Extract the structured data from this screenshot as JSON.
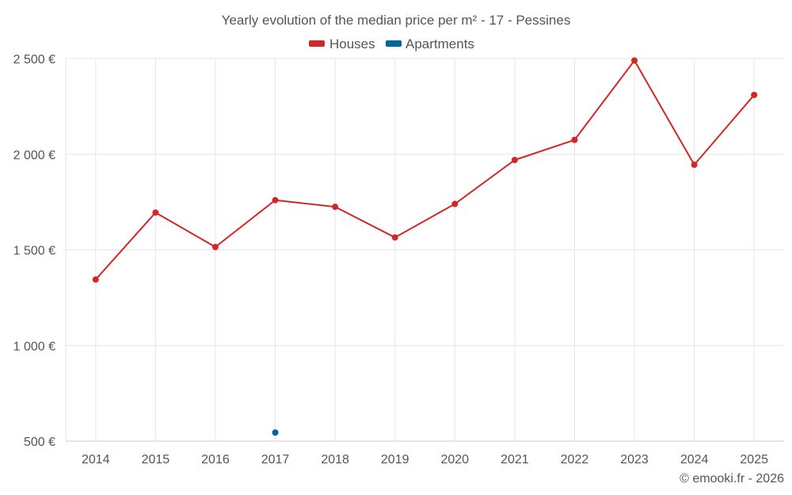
{
  "chart_data": {
    "type": "line",
    "title": "Yearly evolution of the median price per m² - 17 - Pessines",
    "categories": [
      "2014",
      "2015",
      "2016",
      "2017",
      "2018",
      "2019",
      "2020",
      "2021",
      "2022",
      "2023",
      "2024",
      "2025"
    ],
    "series": [
      {
        "name": "Houses",
        "color": "#d32626",
        "values": [
          1345,
          1695,
          1515,
          1760,
          1725,
          1565,
          1740,
          1970,
          2075,
          2490,
          1945,
          2310
        ]
      },
      {
        "name": "Apartments",
        "color": "#00669f",
        "values": [
          null,
          null,
          null,
          545,
          null,
          null,
          null,
          null,
          null,
          null,
          null,
          null
        ]
      }
    ],
    "ylim": [
      500,
      2500
    ],
    "yticks": [
      500,
      1000,
      1500,
      2000,
      2500
    ],
    "ytick_labels": [
      "500 €",
      "1 000 €",
      "1 500 €",
      "2 000 €",
      "2 500 €"
    ],
    "xlabel": "",
    "ylabel": "",
    "grid": true,
    "legend_position": "top-center",
    "credit": "© emooki.fr - 2026"
  }
}
